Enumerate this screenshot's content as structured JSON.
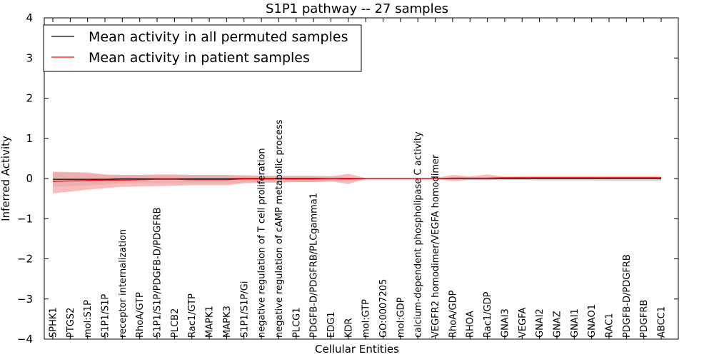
{
  "chart_data": {
    "type": "line",
    "title": "S1P1 pathway -- 27 samples",
    "xlabel": "Cellular Entities",
    "ylabel": "Inferred Activity",
    "ylim": [
      -4,
      4
    ],
    "yticks": [
      "4",
      "3",
      "2",
      "1",
      "0",
      "−1",
      "−2",
      "−3",
      "−4"
    ],
    "ytick_values": [
      4,
      3,
      2,
      1,
      0,
      -1,
      -2,
      -3,
      -4
    ],
    "legend_position": "top-left",
    "categories": [
      "SPHK1",
      "PTGS2",
      "mol:S1P",
      "S1P1/S1P",
      "receptor internalization",
      "RhoA/GTP",
      "S1P1/S1P/PDGFB-D/PDGFRB",
      "PLCB2",
      "Rac1/GTP",
      "MAPK1",
      "MAPK3",
      "S1P1/S1P/Gi",
      "negative regulation of T cell proliferation",
      "negative regulation of cAMP metabolic process",
      "PLCG1",
      "PDGFB-D/PDGFRB/PLCgamma1",
      "EDG1",
      "KDR",
      "mol:GTP",
      "GO:0007205",
      "mol:GDP",
      "calcium-dependent phospholipase C activity",
      "VEGFR2 homodimer/VEGFA homodimer",
      "RhoA/GDP",
      "RHOA",
      "Rac1/GDP",
      "GNAI3",
      "VEGFA",
      "GNAI2",
      "GNAZ",
      "GNAI1",
      "GNAO1",
      "RAC1",
      "PDGFB-D/PDGFRB",
      "PDGFRB",
      "ABCC1"
    ],
    "series": [
      {
        "name": "Mean activity in all permuted samples",
        "color": "#000000",
        "band_color": "#c8c8c8",
        "values": [
          -0.02,
          -0.02,
          -0.02,
          -0.02,
          -0.01,
          -0.01,
          -0.01,
          -0.01,
          -0.01,
          -0.01,
          -0.01,
          0.0,
          0.0,
          0.0,
          0.0,
          0.0,
          0.0,
          0.0,
          0.0,
          0.0,
          0.0,
          0.0,
          0.0,
          0.0,
          0.0,
          0.0,
          0.0,
          0.0,
          0.0,
          0.0,
          0.0,
          0.0,
          0.0,
          0.0,
          0.0,
          0.0
        ],
        "upper": [
          0.16,
          0.15,
          0.12,
          0.1,
          0.09,
          0.09,
          0.09,
          0.09,
          0.09,
          0.09,
          0.09,
          0.08,
          0.07,
          0.07,
          0.07,
          0.07,
          0.06,
          0.02,
          0.01,
          0.01,
          0.01,
          0.01,
          0.01,
          0.01,
          0.01,
          0.01,
          0.01,
          0.01,
          0.01,
          0.01,
          0.01,
          0.01,
          0.01,
          0.01,
          0.01,
          0.01
        ],
        "lower": [
          -0.2,
          -0.19,
          -0.17,
          -0.15,
          -0.12,
          -0.12,
          -0.12,
          -0.12,
          -0.12,
          -0.12,
          -0.12,
          -0.1,
          -0.09,
          -0.09,
          -0.09,
          -0.09,
          -0.08,
          -0.02,
          -0.01,
          -0.01,
          -0.01,
          -0.01,
          -0.01,
          -0.04,
          -0.04,
          -0.04,
          -0.04,
          -0.04,
          -0.05,
          -0.05,
          -0.05,
          -0.05,
          -0.06,
          -0.06,
          -0.06,
          -0.06
        ]
      },
      {
        "name": "Mean activity in patient samples",
        "color": "#ff0000",
        "band_color": "#f7a0a0",
        "values": [
          -0.07,
          -0.06,
          -0.05,
          -0.04,
          -0.04,
          -0.03,
          -0.02,
          -0.02,
          -0.03,
          -0.03,
          -0.03,
          -0.01,
          -0.01,
          -0.01,
          -0.01,
          -0.01,
          0.0,
          -0.01,
          0.0,
          0.0,
          0.0,
          0.0,
          0.0,
          0.01,
          0.01,
          0.01,
          0.02,
          0.02,
          0.02,
          0.02,
          0.02,
          0.02,
          0.02,
          0.02,
          0.02,
          0.02
        ],
        "upper": [
          0.17,
          0.16,
          0.15,
          0.1,
          0.09,
          0.09,
          0.1,
          0.1,
          0.09,
          0.09,
          0.09,
          0.07,
          0.06,
          0.05,
          0.05,
          0.05,
          0.05,
          0.12,
          0.01,
          0.01,
          0.01,
          0.01,
          0.01,
          0.09,
          0.05,
          0.1,
          0.05,
          0.06,
          0.06,
          0.06,
          0.06,
          0.06,
          0.06,
          0.06,
          0.06,
          0.06
        ],
        "lower": [
          -0.37,
          -0.33,
          -0.28,
          -0.24,
          -0.21,
          -0.2,
          -0.19,
          -0.18,
          -0.17,
          -0.17,
          -0.17,
          -0.12,
          -0.11,
          -0.1,
          -0.09,
          -0.09,
          -0.07,
          -0.14,
          -0.01,
          -0.01,
          -0.01,
          -0.01,
          -0.01,
          -0.07,
          -0.03,
          -0.04,
          -0.01,
          -0.01,
          -0.01,
          -0.01,
          -0.01,
          -0.01,
          -0.01,
          -0.01,
          -0.01,
          -0.01
        ]
      }
    ]
  }
}
